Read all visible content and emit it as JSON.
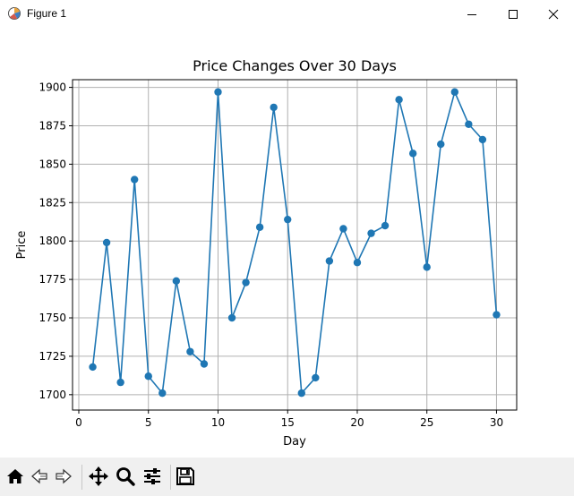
{
  "window": {
    "title": "Figure 1",
    "icons": [
      "matplotlib-figure-icon",
      "minimize-icon",
      "maximize-icon",
      "close-icon"
    ]
  },
  "toolbar": {
    "tools": [
      "home-icon",
      "back-arrow-icon",
      "forward-arrow-icon",
      "pan-icon",
      "zoom-icon",
      "subplots-config-icon",
      "save-icon"
    ]
  },
  "chart_data": {
    "type": "line",
    "title": "Price Changes Over 30 Days",
    "xlabel": "Day",
    "ylabel": "Price",
    "x": [
      1,
      2,
      3,
      4,
      5,
      6,
      7,
      8,
      9,
      10,
      11,
      12,
      13,
      14,
      15,
      16,
      17,
      18,
      19,
      20,
      21,
      22,
      23,
      24,
      25,
      26,
      27,
      28,
      29,
      30
    ],
    "series": [
      {
        "values": [
          1718,
          1799,
          1708,
          1840,
          1712,
          1701,
          1774,
          1728,
          1720,
          1897,
          1750,
          1773,
          1809,
          1887,
          1814,
          1701,
          1711,
          1787,
          1808,
          1786,
          1805,
          1810,
          1892,
          1857,
          1783,
          1863,
          1897,
          1876,
          1866,
          1752
        ],
        "color": "#1f77b4",
        "marker": "circle"
      }
    ],
    "xlim": [
      -0.45,
      31.45
    ],
    "ylim": [
      1690,
      1905
    ],
    "xticks": [
      0,
      5,
      10,
      15,
      20,
      25,
      30
    ],
    "yticks": [
      1700,
      1725,
      1750,
      1775,
      1800,
      1825,
      1850,
      1875,
      1900
    ],
    "grid": true
  }
}
